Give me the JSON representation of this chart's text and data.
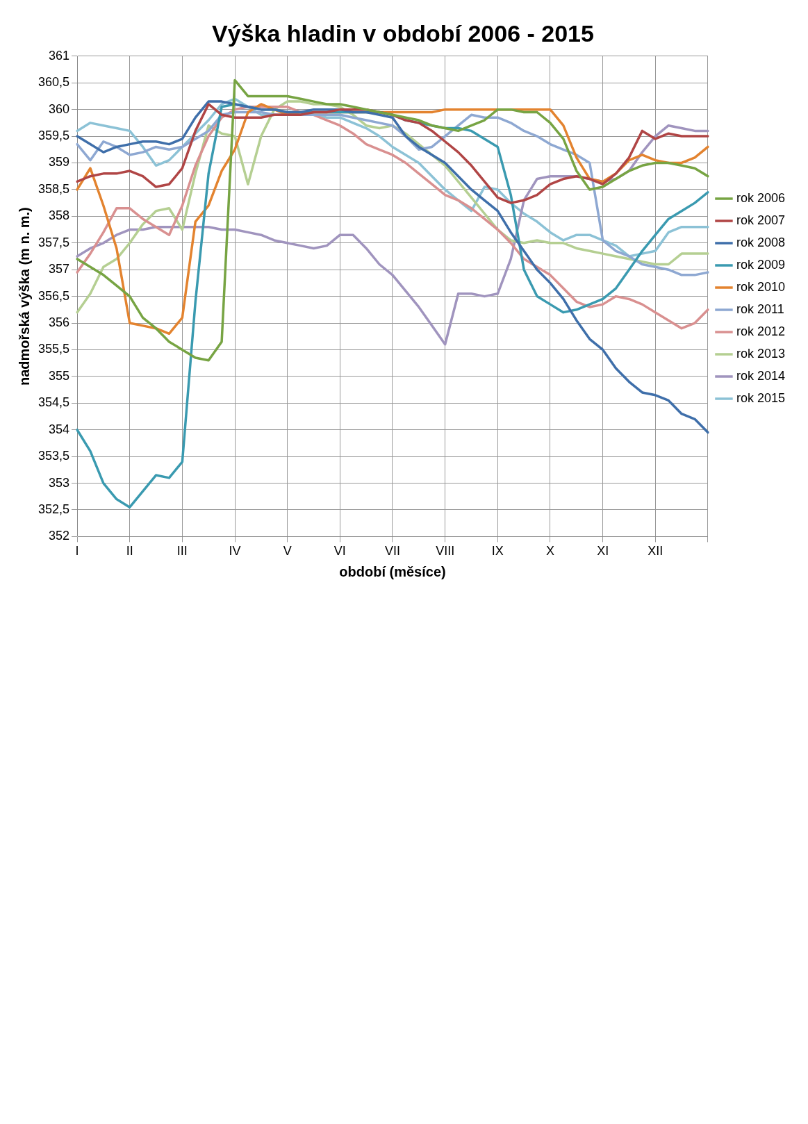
{
  "chart_data": {
    "type": "line",
    "title": "Výška hladin v období 2006 - 2015",
    "xlabel": "období (měsíce)",
    "ylabel": "nadmořská výška (m n. m.)",
    "categories": [
      "I",
      null,
      null,
      null,
      "II",
      null,
      null,
      null,
      "III",
      null,
      null,
      null,
      "IV",
      null,
      null,
      null,
      "V",
      null,
      null,
      null,
      "VI",
      null,
      null,
      null,
      "VII",
      null,
      null,
      null,
      "VIII",
      null,
      null,
      null,
      "IX",
      null,
      null,
      null,
      "X",
      null,
      null,
      null,
      "XI",
      null,
      null,
      null,
      "XII",
      null,
      null,
      null,
      null
    ],
    "ylim": [
      352,
      361
    ],
    "yticks": [
      352,
      {
        "value": 352.5,
        "label": "352,5"
      },
      353,
      {
        "value": 353.5,
        "label": "353,5"
      },
      354,
      {
        "value": 354.5,
        "label": "354,5"
      },
      355,
      {
        "value": 355.5,
        "label": "355,5"
      },
      356,
      {
        "value": 356.5,
        "label": "356,5"
      },
      357,
      {
        "value": 357.5,
        "label": "357,5"
      },
      358,
      {
        "value": 358.5,
        "label": "358,5"
      },
      359,
      {
        "value": 359.5,
        "label": "359,5"
      },
      360,
      {
        "value": 360.5,
        "label": "360,5"
      },
      361
    ],
    "grid": true,
    "legend": "right",
    "marker": "none",
    "line_style": "solid",
    "series": [
      {
        "name": "rok 2006",
        "color": "#77a443",
        "values": [
          357.2,
          357.05,
          356.9,
          356.7,
          356.5,
          356.1,
          355.9,
          355.65,
          355.5,
          355.35,
          355.3,
          355.65,
          360.55,
          360.25,
          360.25,
          360.25,
          360.25,
          360.2,
          360.15,
          360.1,
          360.1,
          360.05,
          360,
          359.95,
          359.9,
          359.85,
          359.8,
          359.7,
          359.65,
          359.6,
          359.7,
          359.8,
          360,
          360,
          359.95,
          359.95,
          359.75,
          359.45,
          358.85,
          358.5,
          358.55,
          358.7,
          358.85,
          358.95,
          359,
          359,
          358.95,
          358.9,
          358.75
        ]
      },
      {
        "name": "rok 2007",
        "color": "#b04545",
        "values": [
          358.65,
          358.75,
          358.8,
          358.8,
          358.85,
          358.75,
          358.55,
          358.6,
          358.9,
          359.6,
          360.1,
          359.9,
          359.85,
          359.85,
          359.85,
          359.9,
          359.9,
          359.9,
          359.95,
          359.95,
          360,
          360,
          360,
          359.95,
          359.9,
          359.8,
          359.75,
          359.6,
          359.4,
          359.2,
          358.95,
          358.65,
          358.35,
          358.25,
          358.3,
          358.4,
          358.6,
          358.7,
          358.75,
          358.7,
          358.6,
          358.8,
          359.1,
          359.6,
          359.45,
          359.55,
          359.5,
          359.5,
          359.5
        ]
      },
      {
        "name": "rok 2008",
        "color": "#3f6faa",
        "values": [
          359.5,
          359.35,
          359.2,
          359.3,
          359.35,
          359.4,
          359.4,
          359.35,
          359.45,
          359.85,
          360.15,
          360.15,
          360.1,
          360.05,
          360,
          360,
          359.95,
          359.95,
          360,
          360,
          360,
          359.95,
          359.95,
          359.9,
          359.85,
          359.5,
          359.3,
          359.15,
          359,
          358.75,
          358.5,
          358.3,
          358.1,
          357.7,
          357.35,
          357,
          356.75,
          356.45,
          356.05,
          355.7,
          355.5,
          355.15,
          354.9,
          354.7,
          354.65,
          354.55,
          354.3,
          354.2,
          353.95
        ]
      },
      {
        "name": "rok 2009",
        "color": "#3a9ab0",
        "values": [
          354,
          353.6,
          353,
          352.7,
          352.55,
          352.85,
          353.15,
          353.1,
          353.4,
          356.4,
          358.8,
          360.05,
          360.1,
          360.05,
          360,
          360,
          359.95,
          359.95,
          359.95,
          359.95,
          359.95,
          359.95,
          359.95,
          359.95,
          359.9,
          359.8,
          359.75,
          359.7,
          359.65,
          359.65,
          359.6,
          359.45,
          359.3,
          358.4,
          357,
          356.5,
          356.35,
          356.2,
          356.25,
          356.35,
          356.45,
          356.65,
          357,
          357.35,
          357.65,
          357.95,
          358.1,
          358.25,
          358.45
        ]
      },
      {
        "name": "rok 2010",
        "color": "#e3832f",
        "values": [
          358.5,
          358.9,
          358.2,
          357.4,
          356,
          355.95,
          355.9,
          355.8,
          356.1,
          357.9,
          358.2,
          358.85,
          359.25,
          359.95,
          360.1,
          360,
          359.9,
          359.95,
          359.95,
          359.95,
          359.95,
          359.95,
          359.95,
          359.95,
          359.95,
          359.95,
          359.95,
          359.95,
          360,
          360,
          360,
          360,
          360,
          360,
          360,
          360,
          360,
          359.7,
          359.1,
          358.7,
          358.65,
          358.8,
          359.05,
          359.15,
          359.05,
          359,
          359,
          359.1,
          359.3
        ]
      },
      {
        "name": "rok 2011",
        "color": "#8ea8d2",
        "values": [
          359.35,
          359.05,
          359.4,
          359.3,
          359.15,
          359.2,
          359.3,
          359.25,
          359.3,
          359.45,
          359.6,
          359.9,
          359.95,
          359.95,
          359.95,
          359.9,
          359.9,
          359.9,
          359.9,
          359.9,
          359.9,
          359.85,
          359.8,
          359.75,
          359.7,
          359.5,
          359.25,
          359.3,
          359.5,
          359.7,
          359.9,
          359.85,
          359.85,
          359.75,
          359.6,
          359.5,
          359.35,
          359.25,
          359.15,
          359,
          357.55,
          357.35,
          357.25,
          357.1,
          357.05,
          357,
          356.9,
          356.9,
          356.95
        ]
      },
      {
        "name": "rok 2012",
        "color": "#d99090",
        "values": [
          356.95,
          357.3,
          357.7,
          358.15,
          358.15,
          357.95,
          357.8,
          357.65,
          358.2,
          358.95,
          359.5,
          359.85,
          360,
          360.05,
          360.05,
          360.05,
          360.05,
          359.95,
          359.9,
          359.8,
          359.7,
          359.55,
          359.35,
          359.25,
          359.15,
          359,
          358.8,
          358.6,
          358.4,
          358.3,
          358.15,
          357.95,
          357.75,
          357.5,
          357.2,
          357.05,
          356.9,
          356.65,
          356.4,
          356.3,
          356.35,
          356.5,
          356.45,
          356.35,
          356.2,
          356.05,
          355.9,
          356,
          356.25
        ]
      },
      {
        "name": "rok 2013",
        "color": "#b5cf92",
        "values": [
          356.2,
          356.55,
          357.05,
          357.2,
          357.5,
          357.85,
          358.1,
          358.15,
          357.75,
          358.8,
          359.7,
          359.55,
          359.5,
          358.6,
          359.5,
          360,
          360.15,
          360.15,
          360.1,
          360.1,
          360.05,
          359.9,
          359.7,
          359.65,
          359.7,
          359.55,
          359.35,
          359.15,
          358.95,
          358.65,
          358.35,
          358.05,
          357.75,
          357.55,
          357.5,
          357.55,
          357.5,
          357.5,
          357.4,
          357.35,
          357.3,
          357.25,
          357.2,
          357.15,
          357.1,
          357.1,
          357.3,
          357.3,
          357.3
        ]
      },
      {
        "name": "rok 2014",
        "color": "#a094be",
        "values": [
          357.25,
          357.4,
          357.5,
          357.65,
          357.75,
          357.75,
          357.8,
          357.8,
          357.8,
          357.8,
          357.8,
          357.75,
          357.75,
          357.7,
          357.65,
          357.55,
          357.5,
          357.45,
          357.4,
          357.45,
          357.65,
          357.65,
          357.4,
          357.1,
          356.9,
          356.6,
          356.3,
          355.95,
          355.6,
          356.55,
          356.55,
          356.5,
          356.55,
          357.2,
          358.3,
          358.7,
          358.75,
          358.75,
          358.75,
          358.7,
          358.65,
          358.7,
          358.85,
          359.2,
          359.5,
          359.7,
          359.65,
          359.6,
          359.6
        ]
      },
      {
        "name": "rok 2015",
        "color": "#8cc2d6",
        "values": [
          359.6,
          359.75,
          359.7,
          359.65,
          359.6,
          359.3,
          358.95,
          359.05,
          359.3,
          359.55,
          359.8,
          360.1,
          360.2,
          360.05,
          359.9,
          359.9,
          359.9,
          359.9,
          359.9,
          359.85,
          359.85,
          359.75,
          359.65,
          359.5,
          359.3,
          359.15,
          359,
          358.75,
          358.5,
          358.3,
          358.1,
          358.55,
          358.5,
          358.25,
          358.05,
          357.9,
          357.7,
          357.55,
          357.65,
          357.65,
          357.55,
          357.45,
          357.25,
          357.3,
          357.35,
          357.7,
          357.8,
          357.8,
          357.8
        ]
      }
    ]
  }
}
